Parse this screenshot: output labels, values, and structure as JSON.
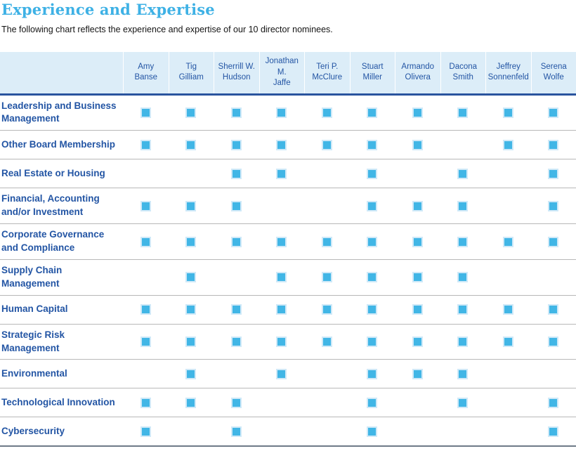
{
  "page": {
    "title": "Experience and Expertise",
    "subtitle": "The following chart reflects the experience and expertise of our 10 director nominees."
  },
  "colors": {
    "title_blue": "#3eb1e5",
    "dark_blue_text": "#2355a4",
    "header_background": "#dcedf8",
    "header_rule": "#2a549e",
    "square_fill": "#41b6e6",
    "square_halo": "#cfe9f8",
    "row_divider": "#b8b8b8",
    "bottom_rule": "#6e7a87"
  },
  "chart_data": {
    "type": "table",
    "title": "Experience and Expertise",
    "subtitle": "The following chart reflects the experience and expertise of our 10 director nominees.",
    "check_marker": "filled-blue-square",
    "columns": [
      "Amy Banse",
      "Tig Gilliam",
      "Sherrill W. Hudson",
      "Jonathan M. Jaffe",
      "Teri P. McClure",
      "Stuart Miller",
      "Armando Olivera",
      "Dacona Smith",
      "Jeffrey Sonnenfeld",
      "Serena Wolfe"
    ],
    "column_display": [
      "Amy\nBanse",
      "Tig\nGilliam",
      "Sherrill W.\nHudson",
      "Jonathan M.\nJaffe",
      "Teri P.\nMcClure",
      "Stuart\nMiller",
      "Armando\nOlivera",
      "Dacona\nSmith",
      "Jeffrey\nSonnenfeld",
      "Serena\nWolfe"
    ],
    "rows": [
      {
        "label": "Leadership and Business\nManagement",
        "checks": [
          1,
          1,
          1,
          1,
          1,
          1,
          1,
          1,
          1,
          1
        ]
      },
      {
        "label": "Other Board Membership",
        "checks": [
          1,
          1,
          1,
          1,
          1,
          1,
          1,
          0,
          1,
          1
        ]
      },
      {
        "label": "Real Estate or Housing",
        "checks": [
          0,
          0,
          1,
          1,
          0,
          1,
          0,
          1,
          0,
          1
        ]
      },
      {
        "label": "Financial, Accounting\nand/or Investment",
        "checks": [
          1,
          1,
          1,
          0,
          0,
          1,
          1,
          1,
          0,
          1
        ]
      },
      {
        "label": "Corporate Governance\nand Compliance",
        "checks": [
          1,
          1,
          1,
          1,
          1,
          1,
          1,
          1,
          1,
          1
        ]
      },
      {
        "label": "Supply Chain\nManagement",
        "checks": [
          0,
          1,
          0,
          1,
          1,
          1,
          1,
          1,
          0,
          0
        ]
      },
      {
        "label": "Human Capital",
        "checks": [
          1,
          1,
          1,
          1,
          1,
          1,
          1,
          1,
          1,
          1
        ]
      },
      {
        "label": "Strategic Risk\nManagement",
        "checks": [
          1,
          1,
          1,
          1,
          1,
          1,
          1,
          1,
          1,
          1
        ]
      },
      {
        "label": "Environmental",
        "checks": [
          0,
          1,
          0,
          1,
          0,
          1,
          1,
          1,
          0,
          0
        ]
      },
      {
        "label": "Technological Innovation",
        "checks": [
          1,
          1,
          1,
          0,
          0,
          1,
          0,
          1,
          0,
          1
        ]
      },
      {
        "label": "Cybersecurity",
        "checks": [
          1,
          0,
          1,
          0,
          0,
          1,
          0,
          0,
          0,
          1
        ]
      }
    ]
  }
}
